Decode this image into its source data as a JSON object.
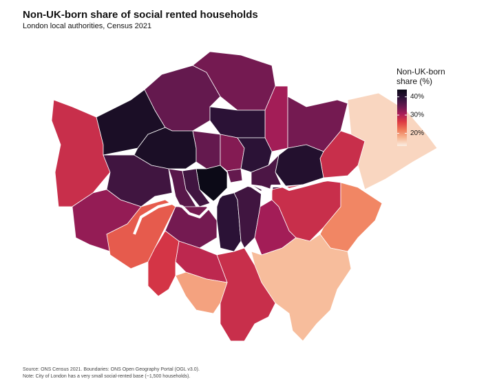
{
  "chart_data": {
    "type": "choropleth",
    "title": "Non-UK-born share of social rented households",
    "subtitle": "London local authorities, Census 2021",
    "legend_title": "Non-UK-born share (%)",
    "colorlim": [
      13,
      44
    ],
    "colorticks": [
      {
        "value": 20,
        "label": "20%"
      },
      {
        "value": 30,
        "label": "30%"
      },
      {
        "value": 40,
        "label": "40%"
      }
    ],
    "colormap": [
      "#fbeee4",
      "#f7b894",
      "#ef7a58",
      "#dd3a42",
      "#a81d58",
      "#62194e",
      "#2e1339",
      "#0c0a17"
    ],
    "values": [
      28,
      42,
      35,
      34,
      31,
      34,
      15,
      28,
      42,
      38,
      40,
      35,
      33,
      40,
      41,
      37,
      45,
      35,
      38,
      36,
      32,
      24,
      34,
      40,
      38,
      31,
      28,
      21,
      17,
      28,
      29,
      19,
      27
    ],
    "source": "Source: ONS Census 2021. Boundaries: ONS Open Geography Portal (OGL v3.0).",
    "note": "Note: City of London has a very small social-rented base (~1,500 households)."
  }
}
